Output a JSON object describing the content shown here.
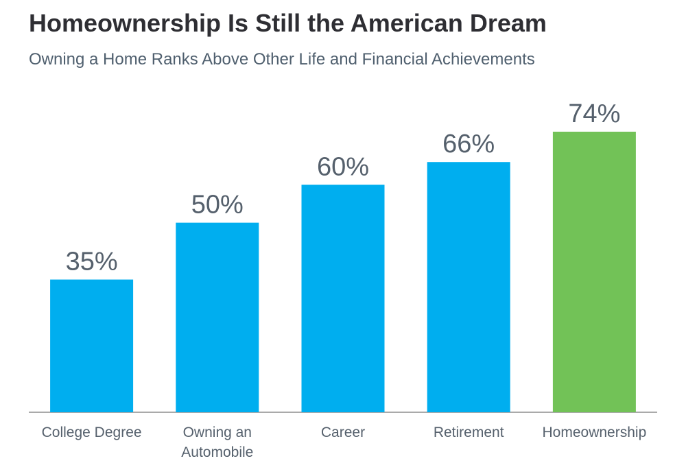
{
  "chart_data": {
    "type": "bar",
    "title": "Homeownership Is Still the American Dream",
    "subtitle": "Owning a Home Ranks Above Other Life and Financial Achievements",
    "categories": [
      "College Degree",
      "Owning an Automobile",
      "Career",
      "Retirement",
      "Homeownership"
    ],
    "values": [
      35,
      50,
      60,
      66,
      74
    ],
    "value_labels": [
      "35%",
      "50%",
      "60%",
      "66%",
      "74%"
    ],
    "colors": [
      "#00aeef",
      "#00aeef",
      "#00aeef",
      "#00aeef",
      "#72c257"
    ]
  }
}
